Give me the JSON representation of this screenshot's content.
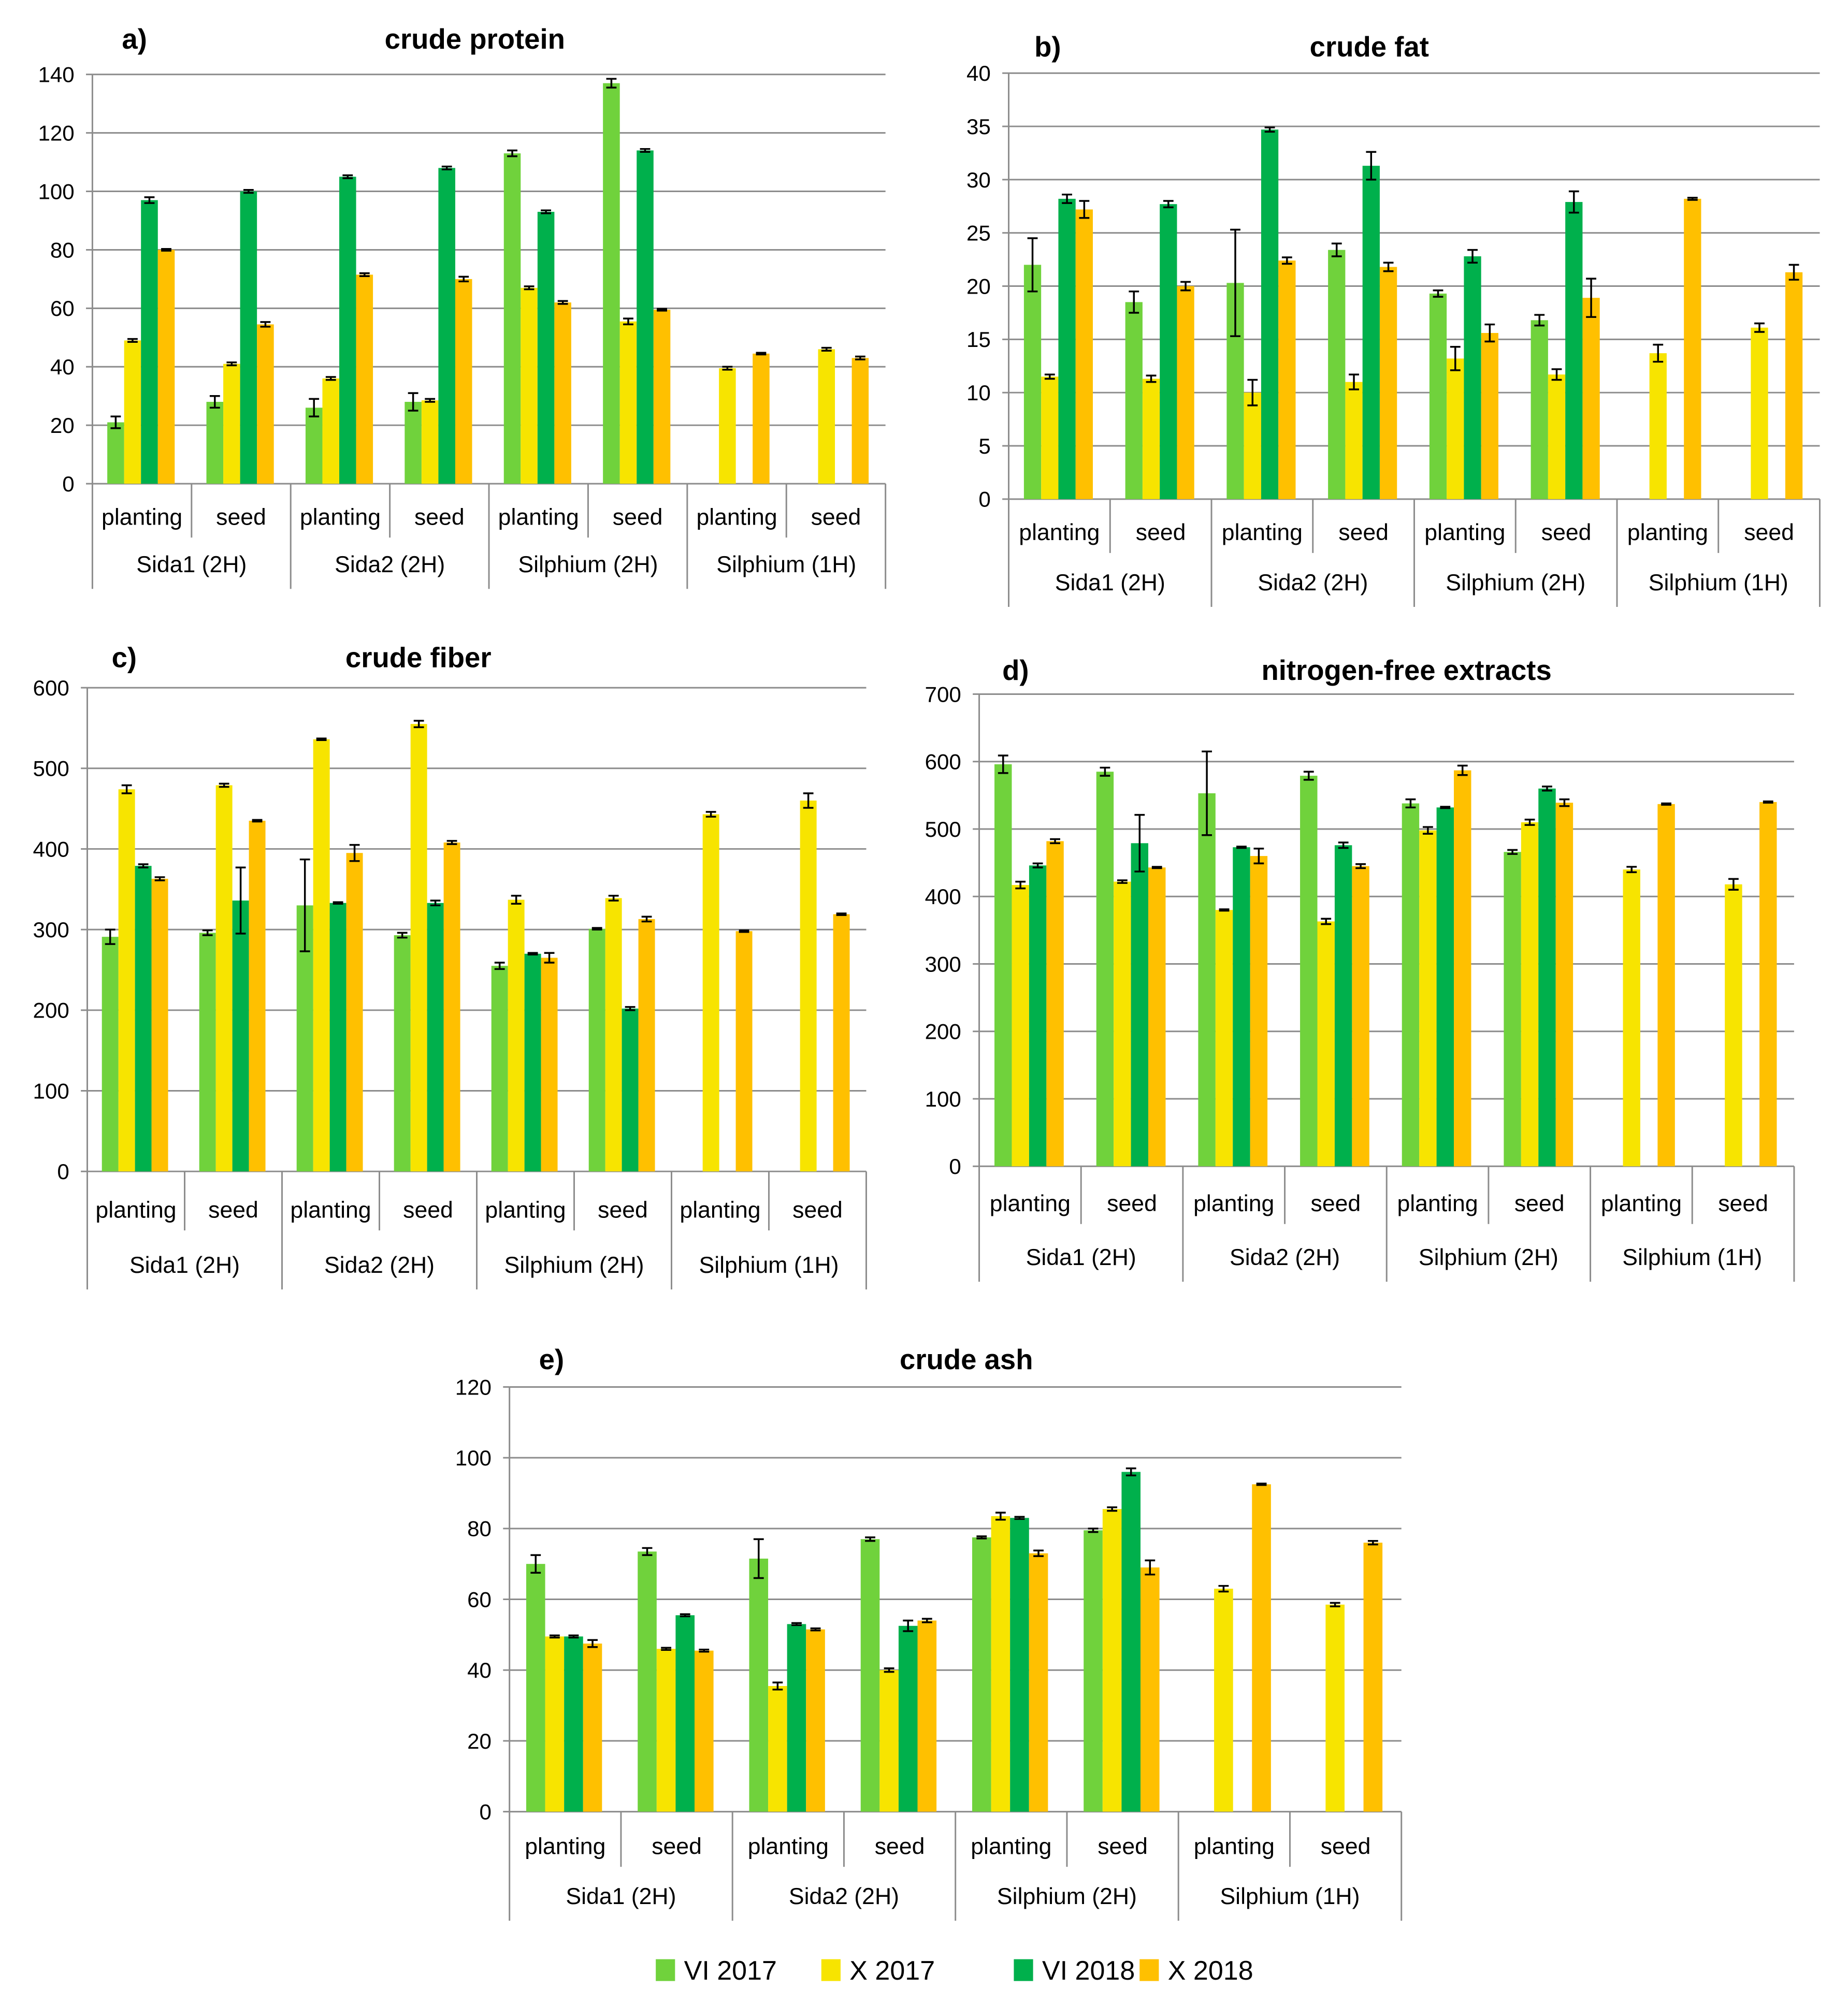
{
  "legend": [
    {
      "name": "VI 2017",
      "color": "#70d23c"
    },
    {
      "name": "X 2017",
      "color": "#f7e400"
    },
    {
      "name": "VI 2018",
      "color": "#00b04c"
    },
    {
      "name": "X 2018",
      "color": "#ffc000"
    }
  ],
  "chart_data": [
    {
      "type": "bar",
      "panel": "a)",
      "title": "crude protein",
      "ylim": [
        0,
        140
      ],
      "ystep": 20,
      "categories": [
        "planting",
        "seed",
        "planting",
        "seed",
        "planting",
        "seed",
        "planting",
        "seed"
      ],
      "groups": [
        "Sida1 (2H)",
        "Sida2 (2H)",
        "Silphium (2H)",
        "Silphium (1H)"
      ],
      "series": [
        {
          "name": "VI 2017",
          "values": [
            21,
            28,
            26,
            28,
            113,
            137,
            null,
            null
          ],
          "errors": [
            2,
            2,
            3,
            3,
            1,
            1.5,
            null,
            null
          ]
        },
        {
          "name": "X 2017",
          "values": [
            49,
            41,
            36,
            28.5,
            67,
            55.5,
            39.5,
            46
          ],
          "errors": [
            0.5,
            0.5,
            0.5,
            0.5,
            0.5,
            1,
            0.5,
            0.5
          ]
        },
        {
          "name": "VI 2018",
          "values": [
            97,
            100,
            105,
            108,
            93,
            114,
            null,
            null
          ],
          "errors": [
            1,
            0.5,
            0.5,
            0.5,
            0.5,
            0.5,
            null,
            null
          ]
        },
        {
          "name": "X 2018",
          "values": [
            80,
            54.5,
            71.5,
            70,
            62,
            59.5,
            44.5,
            43
          ],
          "errors": [
            0.3,
            0.8,
            0.5,
            0.8,
            0.5,
            0.3,
            0.3,
            0.5
          ]
        }
      ]
    },
    {
      "type": "bar",
      "panel": "b)",
      "title": "crude fat",
      "ylim": [
        0,
        40
      ],
      "ystep": 5,
      "categories": [
        "planting",
        "seed",
        "planting",
        "seed",
        "planting",
        "seed",
        "planting",
        "seed"
      ],
      "groups": [
        "Sida1 (2H)",
        "Sida2 (2H)",
        "Silphium (2H)",
        "Silphium (1H)"
      ],
      "series": [
        {
          "name": "VI 2017",
          "values": [
            22,
            18.5,
            20.3,
            23.4,
            19.3,
            16.8,
            null,
            null
          ],
          "errors": [
            2.5,
            1,
            5,
            0.6,
            0.3,
            0.5,
            null,
            null
          ]
        },
        {
          "name": "X 2017",
          "values": [
            11.5,
            11.3,
            10,
            11,
            13.2,
            11.7,
            13.7,
            16.1
          ],
          "errors": [
            0.2,
            0.3,
            1.2,
            0.7,
            1.1,
            0.5,
            0.8,
            0.4
          ]
        },
        {
          "name": "VI 2018",
          "values": [
            28.2,
            27.7,
            34.7,
            31.3,
            22.8,
            27.9,
            null,
            null
          ],
          "errors": [
            0.4,
            0.3,
            0.2,
            1.3,
            0.6,
            1,
            null,
            null
          ]
        },
        {
          "name": "X 2018",
          "values": [
            27.2,
            20,
            22.4,
            21.8,
            15.6,
            18.9,
            28.2,
            21.3
          ],
          "errors": [
            0.8,
            0.4,
            0.3,
            0.4,
            0.8,
            1.8,
            0.1,
            0.7
          ]
        }
      ]
    },
    {
      "type": "bar",
      "panel": "c)",
      "title": "crude fiber",
      "ylim": [
        0,
        600
      ],
      "ystep": 100,
      "categories": [
        "planting",
        "seed",
        "planting",
        "seed",
        "planting",
        "seed",
        "planting",
        "seed"
      ],
      "groups": [
        "Sida1 (2H)",
        "Sida2 (2H)",
        "Silphium (2H)",
        "Silphium (1H)"
      ],
      "series": [
        {
          "name": "VI 2017",
          "values": [
            291,
            296,
            330,
            293,
            255,
            301,
            null,
            null
          ],
          "errors": [
            9,
            3,
            57,
            3,
            4,
            1,
            null,
            null
          ]
        },
        {
          "name": "X 2017",
          "values": [
            474,
            479,
            536,
            555,
            337,
            339,
            443,
            460
          ],
          "errors": [
            5,
            2,
            1,
            4,
            5,
            3,
            3,
            9
          ]
        },
        {
          "name": "VI 2018",
          "values": [
            379,
            336,
            333,
            333,
            270,
            202,
            null,
            null
          ],
          "errors": [
            2,
            41,
            1,
            3,
            1,
            2,
            null,
            null
          ]
        },
        {
          "name": "X 2018",
          "values": [
            363,
            435,
            395,
            408,
            265,
            313,
            298,
            319
          ],
          "errors": [
            2,
            1,
            10,
            2,
            6,
            3,
            1,
            1
          ]
        }
      ]
    },
    {
      "type": "bar",
      "panel": "d)",
      "title": "nitrogen-free extracts",
      "ylim": [
        0,
        700
      ],
      "ystep": 100,
      "categories": [
        "planting",
        "seed",
        "planting",
        "seed",
        "planting",
        "seed",
        "planting",
        "seed"
      ],
      "groups": [
        "Sida1 (2H)",
        "Sida2 (2H)",
        "Silphium (2H)",
        "Silphium (1H)"
      ],
      "series": [
        {
          "name": "VI 2017",
          "values": [
            596,
            585,
            553,
            579,
            538,
            466,
            null,
            null
          ],
          "errors": [
            13,
            6,
            62,
            6,
            6,
            3,
            null,
            null
          ]
        },
        {
          "name": "X 2017",
          "values": [
            417,
            422,
            380,
            363,
            498,
            510,
            440,
            418
          ],
          "errors": [
            5,
            2,
            1,
            4,
            5,
            4,
            4,
            8
          ]
        },
        {
          "name": "VI 2018",
          "values": [
            446,
            479,
            473,
            476,
            532,
            560,
            null,
            null
          ],
          "errors": [
            3,
            42,
            1,
            4,
            1,
            3,
            null,
            null
          ]
        },
        {
          "name": "X 2018",
          "values": [
            482,
            443,
            460,
            445,
            587,
            539,
            537,
            540
          ],
          "errors": [
            3,
            1,
            11,
            3,
            7,
            5,
            1,
            1
          ]
        }
      ]
    },
    {
      "type": "bar",
      "panel": "e)",
      "title": "crude ash",
      "ylim": [
        0,
        120
      ],
      "ystep": 20,
      "categories": [
        "planting",
        "seed",
        "planting",
        "seed",
        "planting",
        "seed",
        "planting",
        "seed"
      ],
      "groups": [
        "Sida1 (2H)",
        "Sida2 (2H)",
        "Silphium (2H)",
        "Silphium (1H)"
      ],
      "series": [
        {
          "name": "VI 2017",
          "values": [
            70,
            73.5,
            71.5,
            77,
            77.5,
            79.5,
            null,
            null
          ],
          "errors": [
            2.5,
            1,
            5.5,
            0.5,
            0.3,
            0.5,
            null,
            null
          ]
        },
        {
          "name": "X 2017",
          "values": [
            49.5,
            46,
            35.5,
            40,
            83.5,
            85.5,
            63,
            58.5
          ],
          "errors": [
            0.3,
            0.3,
            1,
            0.5,
            1,
            0.5,
            0.8,
            0.5
          ]
        },
        {
          "name": "VI 2018",
          "values": [
            49.5,
            55.5,
            53,
            52.5,
            83,
            96,
            null,
            null
          ],
          "errors": [
            0.3,
            0.3,
            0.3,
            1.5,
            0.3,
            1,
            null,
            null
          ]
        },
        {
          "name": "X 2018",
          "values": [
            47.5,
            45.5,
            51.5,
            54,
            73,
            69,
            92.5,
            76
          ],
          "errors": [
            1,
            0.3,
            0.3,
            0.5,
            0.8,
            2,
            0.2,
            0.5
          ]
        }
      ]
    }
  ]
}
